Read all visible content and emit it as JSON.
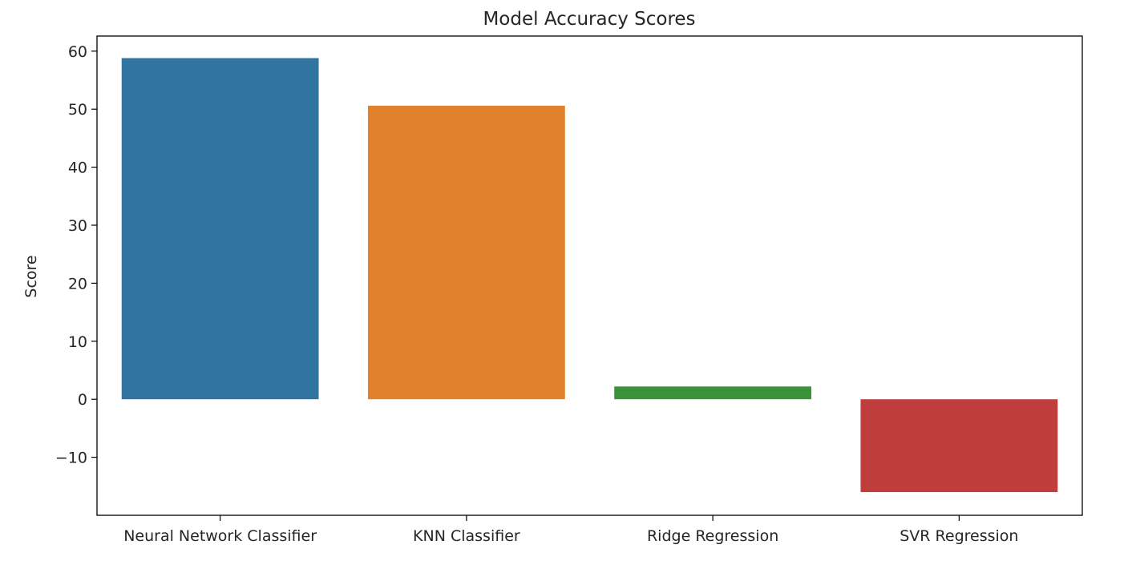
{
  "chart_data": {
    "type": "bar",
    "title": "Model Accuracy Scores",
    "xlabel": "",
    "ylabel": "Score",
    "categories": [
      "Neural Network Classifier",
      "KNN Classifier",
      "Ridge Regression",
      "SVR Regression"
    ],
    "values": [
      58.8,
      50.6,
      2.2,
      -16.0
    ],
    "colors": [
      "#3274a1",
      "#e1812c",
      "#3a923a",
      "#c03d3e"
    ],
    "yticks": [
      -10,
      0,
      10,
      20,
      30,
      40,
      50,
      60
    ],
    "ytick_labels": [
      "−10",
      "0",
      "10",
      "20",
      "30",
      "40",
      "50",
      "60"
    ],
    "ylim": [
      -20.0,
      62.6
    ],
    "grid": false,
    "legend": "none"
  }
}
